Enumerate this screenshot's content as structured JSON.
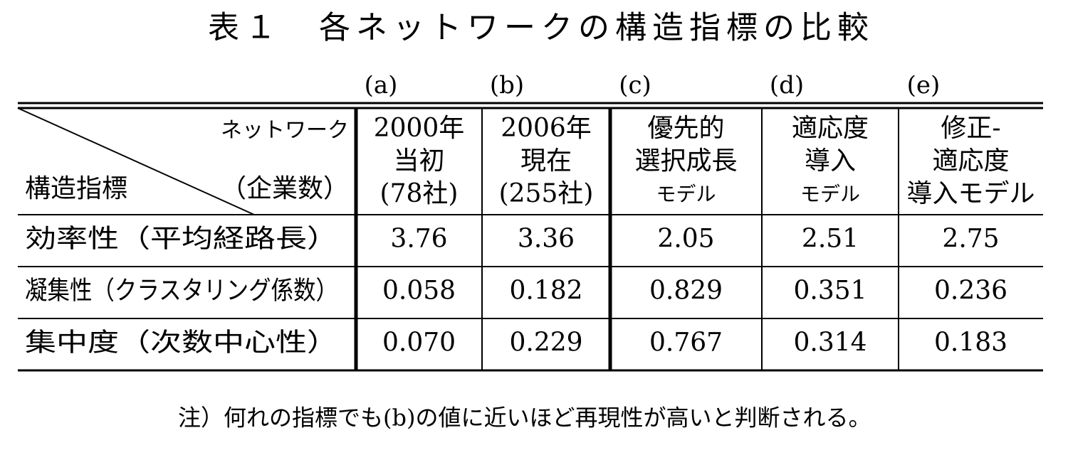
{
  "header": {
    "title": "表１　各ネットワークの構造指標の比較"
  },
  "table": {
    "corner": {
      "network": "ネットワーク",
      "indicator": "構造指標",
      "count": "（企業数）"
    },
    "columns": [
      {
        "label": "(a)",
        "lines": [
          "2000年",
          "当初",
          "(78社)"
        ]
      },
      {
        "label": "(b)",
        "lines": [
          "2006年",
          "現在",
          "(255社)"
        ]
      },
      {
        "label": "(c)",
        "lines": [
          "優先的",
          "選択成長",
          "モデル"
        ]
      },
      {
        "label": "(d)",
        "lines": [
          "適応度",
          "導入",
          "モデル"
        ]
      },
      {
        "label": "(e)",
        "lines": [
          "修正-",
          "適応度",
          "導入モデル"
        ]
      }
    ],
    "rows": [
      {
        "label": "効率性（平均経路長）",
        "values": [
          "3.76",
          "3.36",
          "2.05",
          "2.51",
          "2.75"
        ]
      },
      {
        "label": "凝集性（クラスタリング係数）",
        "values": [
          "0.058",
          "0.182",
          "0.829",
          "0.351",
          "0.236"
        ]
      },
      {
        "label": "集中度（次数中心性）",
        "values": [
          "0.070",
          "0.229",
          "0.767",
          "0.314",
          "0.183"
        ]
      }
    ]
  },
  "note": "注）何れの指標でも(b)の値に近いほど再現性が高いと判断される。"
}
